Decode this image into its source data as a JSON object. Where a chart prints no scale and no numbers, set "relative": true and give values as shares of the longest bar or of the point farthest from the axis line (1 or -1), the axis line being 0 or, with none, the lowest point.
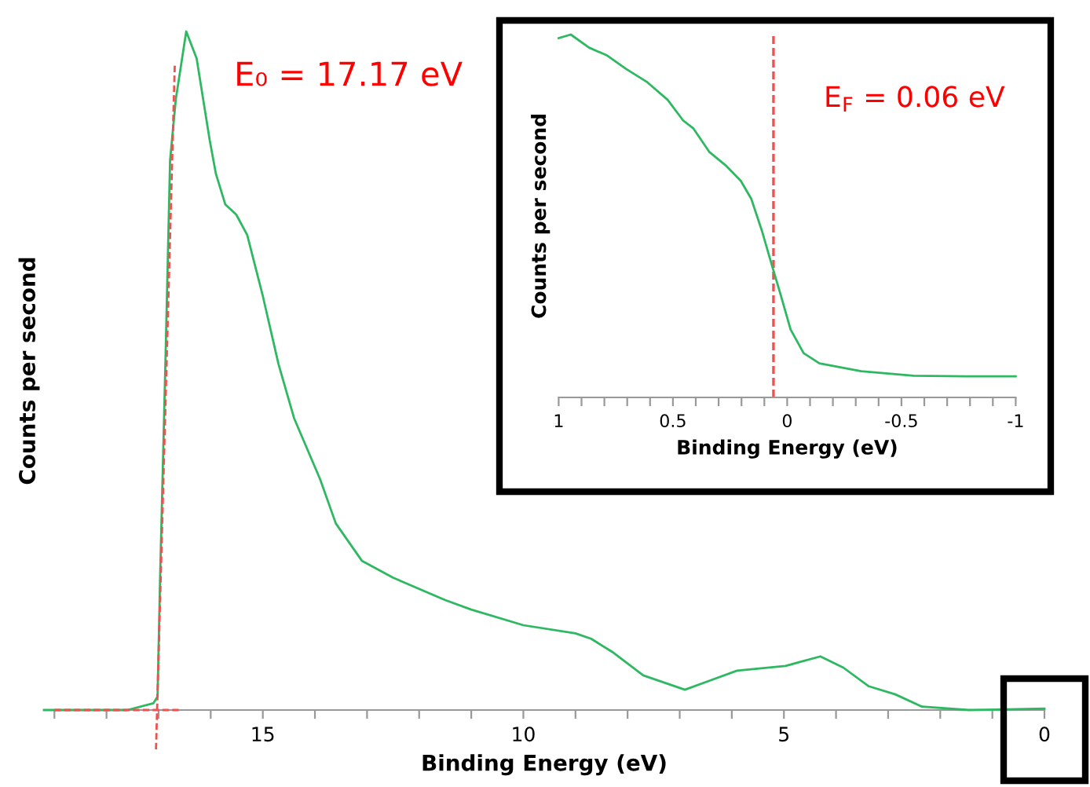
{
  "chart_data": [
    {
      "type": "line",
      "relative": true,
      "xlabel": "Binding Energy (eV)",
      "ylabel": "Counts per second",
      "tick_labels": "x",
      "grid": false,
      "legend": false,
      "xlim": [
        19.2,
        0
      ],
      "xticks": [
        {
          "value": 19,
          "label": null
        },
        {
          "value": 18,
          "label": null
        },
        {
          "value": 17,
          "label": null
        },
        {
          "value": 16,
          "label": null
        },
        15,
        {
          "value": 14,
          "label": null
        },
        {
          "value": 13,
          "label": null
        },
        {
          "value": 12,
          "label": null
        },
        {
          "value": 11,
          "label": null
        },
        10,
        {
          "value": 9,
          "label": null
        },
        {
          "value": 8,
          "label": null
        },
        {
          "value": 7,
          "label": null
        },
        {
          "value": 6,
          "label": null
        },
        5,
        {
          "value": 4,
          "label": null
        },
        {
          "value": 3,
          "label": null
        },
        {
          "value": 2,
          "label": null
        },
        {
          "value": 1,
          "label": null
        },
        0
      ],
      "annotations": [
        "E₀ = 17.17 eV"
      ],
      "series": [
        {
          "color": "#2eb862",
          "line_style": "solid",
          "x": [
            19.2,
            17.6,
            17.1,
            17.02,
            16.97,
            16.87,
            16.78,
            16.67,
            16.47,
            16.27,
            16.02,
            15.9,
            15.72,
            15.51,
            15.3,
            15.0,
            14.7,
            14.4,
            13.9,
            13.6,
            13.1,
            12.5,
            11.5,
            11.0,
            10.0,
            9.0,
            8.7,
            8.3,
            7.7,
            6.9,
            6.4,
            5.9,
            4.97,
            4.3,
            3.86,
            3.37,
            2.86,
            2.35,
            1.45,
            0
          ],
          "values": [
            0.0,
            0.0,
            0.01,
            0.02,
            0.2,
            0.51,
            0.81,
            0.9,
            1.0,
            0.96,
            0.84,
            0.79,
            0.745,
            0.73,
            0.7,
            0.61,
            0.51,
            0.43,
            0.34,
            0.275,
            0.22,
            0.195,
            0.162,
            0.148,
            0.125,
            0.113,
            0.105,
            0.086,
            0.051,
            0.03,
            0.044,
            0.058,
            0.065,
            0.079,
            0.0625,
            0.035,
            0.023,
            0.005,
            0.0,
            0.002
          ]
        },
        {
          "color": "#f05050",
          "line_style": "dashed",
          "x": [
            17.05,
            16.69
          ],
          "values": [
            -0.058,
            0.95
          ]
        },
        {
          "color": "#f05050",
          "line_style": "dashed",
          "x": [
            19.0,
            16.6
          ],
          "values": [
            0,
            0
          ]
        }
      ]
    },
    {
      "type": "line",
      "relative": true,
      "xlabel": "Binding Energy (eV)",
      "ylabel": "Counts per second",
      "tick_labels": "x",
      "grid": false,
      "legend": false,
      "xlim": [
        1,
        -1
      ],
      "xticks": [
        1,
        {
          "value": 0.9,
          "label": null
        },
        {
          "value": 0.8,
          "label": null
        },
        {
          "value": 0.7,
          "label": null
        },
        {
          "value": 0.6,
          "label": null
        },
        0.5,
        {
          "value": 0.4,
          "label": null
        },
        {
          "value": 0.3,
          "label": null
        },
        {
          "value": 0.2,
          "label": null
        },
        {
          "value": 0.1,
          "label": null
        },
        0,
        {
          "value": -0.1,
          "label": null
        },
        {
          "value": -0.2,
          "label": null
        },
        {
          "value": -0.3,
          "label": null
        },
        {
          "value": -0.4,
          "label": null
        },
        -0.5,
        {
          "value": -0.6,
          "label": null
        },
        {
          "value": -0.7,
          "label": null
        },
        {
          "value": -0.8,
          "label": null
        },
        {
          "value": -0.9,
          "label": null
        },
        -1
      ],
      "annotations": [
        "E$_{F}$ = 0.06 eV"
      ],
      "ref_lines": [
        {
          "axis": "x",
          "value": 0.06,
          "color": "#f05050",
          "line_style": "dashed"
        }
      ],
      "series": [
        {
          "color": "#2eb862",
          "line_style": "solid",
          "x": [
            1.0,
            0.947,
            0.867,
            0.787,
            0.707,
            0.615,
            0.523,
            0.455,
            0.41,
            0.34,
            0.27,
            0.203,
            0.157,
            0.111,
            0.065,
            0.031,
            -0.015,
            -0.072,
            -0.141,
            -0.324,
            -0.553,
            -0.78,
            -1.0
          ],
          "values": [
            0.99,
            1.0,
            0.964,
            0.942,
            0.906,
            0.87,
            0.82,
            0.763,
            0.741,
            0.676,
            0.64,
            0.597,
            0.547,
            0.46,
            0.36,
            0.288,
            0.187,
            0.122,
            0.094,
            0.072,
            0.06,
            0.058,
            0.058
          ]
        }
      ]
    }
  ]
}
